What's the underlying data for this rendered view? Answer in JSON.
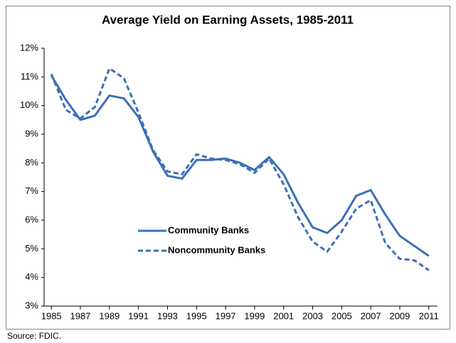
{
  "chart_data": {
    "type": "line",
    "title": "Average Yield on Earning Assets, 1985-2011",
    "source": "Source: FDIC.",
    "x": [
      1985,
      1986,
      1987,
      1988,
      1989,
      1990,
      1991,
      1992,
      1993,
      1994,
      1995,
      1996,
      1997,
      1998,
      1999,
      2000,
      2001,
      2002,
      2003,
      2004,
      2005,
      2006,
      2007,
      2008,
      2009,
      2010,
      2011
    ],
    "series": [
      {
        "name": "Community Banks",
        "color": "#3d6fb6",
        "style": "solid",
        "values": [
          11.05,
          10.2,
          9.5,
          9.65,
          10.35,
          10.25,
          9.6,
          8.4,
          7.55,
          7.45,
          8.1,
          8.1,
          8.15,
          8.0,
          7.75,
          8.2,
          7.6,
          6.6,
          5.75,
          5.55,
          6.0,
          6.85,
          7.05,
          6.2,
          5.45,
          5.1,
          4.75
        ]
      },
      {
        "name": "Noncommunity Banks",
        "color": "#3d6fb6",
        "style": "dashed",
        "values": [
          11.1,
          9.85,
          9.55,
          9.95,
          11.3,
          10.95,
          9.75,
          8.45,
          7.7,
          7.6,
          8.3,
          8.15,
          8.1,
          7.95,
          7.65,
          8.15,
          7.25,
          6.1,
          5.25,
          4.9,
          5.6,
          6.4,
          6.7,
          5.2,
          4.65,
          4.6,
          4.25
        ]
      }
    ],
    "xlim": [
      1984.5,
      2011.6
    ],
    "xticks": [
      1985,
      1987,
      1989,
      1991,
      1993,
      1995,
      1997,
      1999,
      2001,
      2003,
      2005,
      2007,
      2009,
      2011
    ],
    "ylim": [
      3,
      12
    ],
    "yticks": [
      {
        "value": 3,
        "label": "3%"
      },
      {
        "value": 4,
        "label": "4%"
      },
      {
        "value": 5,
        "label": "5%"
      },
      {
        "value": 6,
        "label": "6%"
      },
      {
        "value": 7,
        "label": "7%"
      },
      {
        "value": 8,
        "label": "8%"
      },
      {
        "value": 9,
        "label": "9%"
      },
      {
        "value": 10,
        "label": "10%"
      },
      {
        "value": 11,
        "label": "11%"
      },
      {
        "value": 12,
        "label": "12%"
      }
    ],
    "grid": false,
    "legend": "center"
  }
}
